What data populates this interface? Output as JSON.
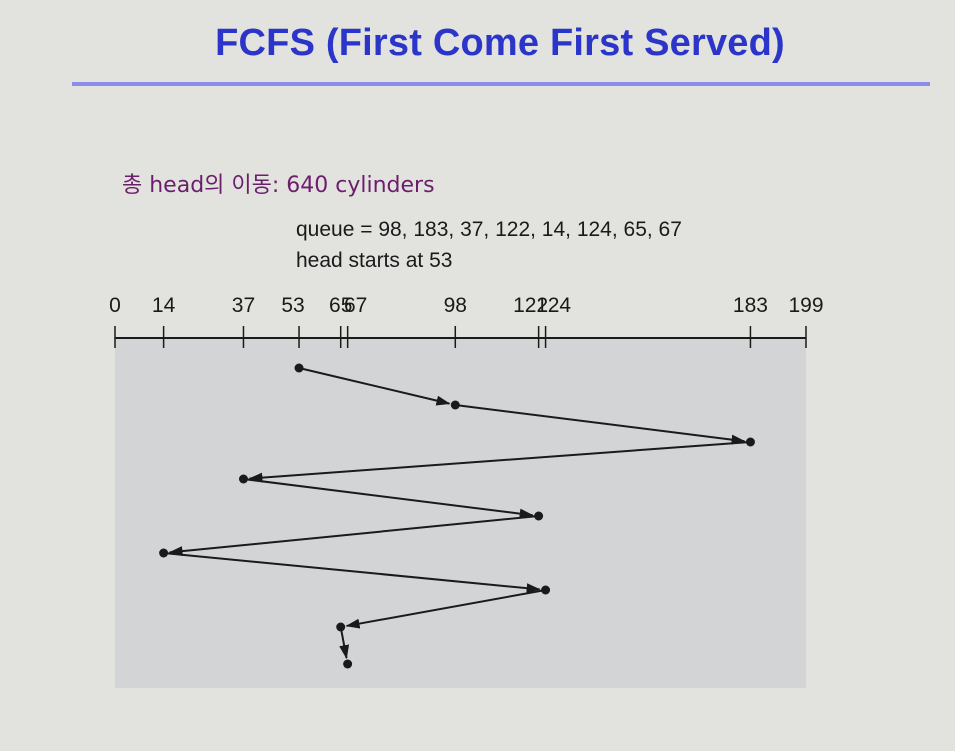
{
  "title": "FCFS (First Come First Served)",
  "summary": "총 head의 이동: 640 cylinders",
  "queue_text": "queue = 98, 183, 37, 122, 14, 124, 65, 67",
  "head_text": "head starts at 53",
  "colors": {
    "title": "#2b35c9",
    "rule": "#8a8ee8",
    "summary": "#6b1f6b",
    "plot_background": "#d3d4d6",
    "path": "#1a1a1a"
  },
  "axis": {
    "min": 0,
    "max": 199,
    "tick_labels": [
      "0",
      "14",
      "37",
      "53",
      "65",
      "67",
      "98",
      "122",
      "124",
      "183",
      "199"
    ]
  },
  "head_start": 53,
  "service_order": [
    53,
    98,
    183,
    37,
    122,
    14,
    124,
    65,
    67
  ]
}
